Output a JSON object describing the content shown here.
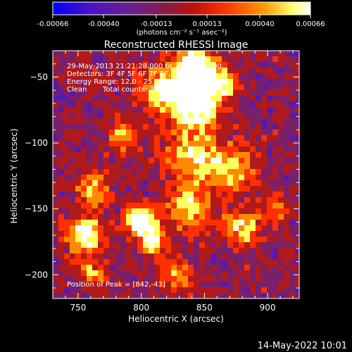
{
  "colorbar": {
    "tick_labels": [
      "-0.00066",
      "-0.00040",
      "-0.00013",
      "0.00013",
      "0.00040",
      "0.00066"
    ],
    "tick_values": [
      -0.00066,
      -0.0004,
      -0.00013,
      0.00013,
      0.0004,
      0.00066
    ],
    "range": [
      -0.00066,
      0.00066
    ],
    "units": "(photons cm⁻² s⁻¹ asec⁻²)",
    "colors": [
      "#0000ff",
      "#5a1aa8",
      "#7a1f6a",
      "#b01a1a",
      "#ff3000",
      "#ff8a00",
      "#ffff60",
      "#ffffff"
    ]
  },
  "chart_data": {
    "type": "heatmap",
    "title": "Reconstructed RHESSI Image",
    "xlabel": "Heliocentric X (arcsec)",
    "ylabel": "Heliocentric Y (arcsec)",
    "xlim": [
      730,
      925
    ],
    "ylim": [
      -218,
      -30
    ],
    "x_ticks": [
      750,
      800,
      850,
      900
    ],
    "x_tick_labels": [
      "750",
      "800",
      "850",
      "900"
    ],
    "y_ticks": [
      -50,
      -100,
      -150,
      -200
    ],
    "y_tick_labels": [
      "−50",
      "−100",
      "−150",
      "−200"
    ],
    "peak": [
      842,
      -43
    ],
    "annotations": [
      "29-May-2013 21:21:28.000 to 21:24:16.000",
      "Detectors: 3F 4F 5F 6F 7F 8F, 9F",
      "Energy Range: 12.0 - 25.0 keV",
      "Clean",
      "Total counts: 3.52E+03",
      "Position of Peak = [842,-43]"
    ]
  },
  "timestamp": "14-May-2022 10:01"
}
